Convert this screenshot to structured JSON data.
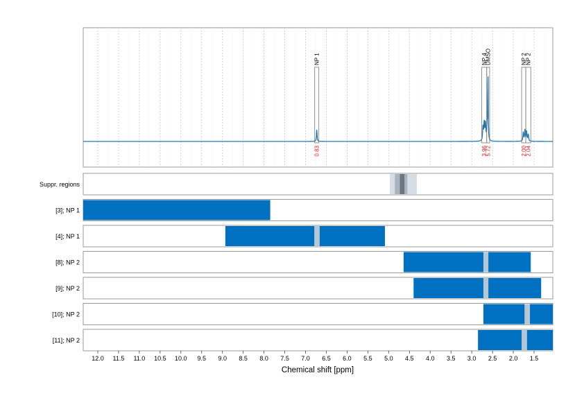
{
  "chart_data": {
    "type": "nmr-spectrum-with-region-tracks",
    "xlabel": "Chemical shift [ppm]",
    "x_reversed": true,
    "xlim": [
      12.35,
      1.05
    ],
    "x_ticks": [
      12.0,
      11.5,
      11.0,
      10.5,
      10.0,
      9.5,
      9.0,
      8.5,
      8.0,
      7.5,
      7.0,
      6.5,
      6.0,
      5.5,
      5.0,
      4.5,
      4.0,
      3.5,
      3.0,
      2.5,
      2.0,
      1.5
    ],
    "x_tick_labels": [
      "12.0",
      "11.5",
      "11.0",
      "10.5",
      "10.0",
      "9.5",
      "9.0",
      "8.5",
      "8.0",
      "7.5",
      "7.0",
      "6.5",
      "6.0",
      "5.5",
      "5.0",
      "4.5",
      "4.0",
      "3.5",
      "3.0",
      "2.5",
      "2.0",
      "1.5"
    ],
    "spectrum": {
      "color": "#1f77b4",
      "baseline_y": 0,
      "peaks": [
        {
          "x": 6.73,
          "height": 0.18,
          "width": 0.008
        },
        {
          "x": 2.73,
          "height": 0.2,
          "width": 0.01
        },
        {
          "x": 2.7,
          "height": 0.28,
          "width": 0.01
        },
        {
          "x": 2.67,
          "height": 0.25,
          "width": 0.01
        },
        {
          "x": 2.63,
          "height": 0.22,
          "width": 0.01
        },
        {
          "x": 2.61,
          "height": 1.0,
          "width": 0.006
        },
        {
          "x": 1.76,
          "height": 0.13,
          "width": 0.01
        },
        {
          "x": 1.72,
          "height": 0.16,
          "width": 0.01
        },
        {
          "x": 1.68,
          "height": 0.14,
          "width": 0.01
        },
        {
          "x": 1.64,
          "height": 0.1,
          "width": 0.01
        }
      ]
    },
    "annotations": [
      {
        "label": "NP 1",
        "x_left": 6.78,
        "x_right": 6.68,
        "integral": "0.83"
      },
      {
        "label": "NP 4",
        "x_left": 2.76,
        "x_right": 2.64,
        "integral": "3.96"
      },
      {
        "label": "DMSO",
        "x_left": 2.64,
        "x_right": 2.57,
        "integral": "5.72"
      },
      {
        "label": "NP 2",
        "x_left": 1.8,
        "x_right": 1.7,
        "integral": "2.00"
      },
      {
        "label": "NP 2",
        "x_left": 1.7,
        "x_right": 1.58,
        "integral": "2.04"
      }
    ],
    "integral_color": "#e41a1c",
    "tracks": [
      {
        "label": "Suppr. regions",
        "bars": [
          {
            "from": 4.97,
            "to": 4.32,
            "color": "#d6dde5"
          },
          {
            "from": 4.85,
            "to": 4.55,
            "color": "#a9b4bf"
          },
          {
            "from": 4.73,
            "to": 4.62,
            "color": "#6b7680"
          }
        ]
      },
      {
        "label": "[3]; NP 1",
        "bars": [
          {
            "from": 12.35,
            "to": 7.85,
            "color": "#0070c0"
          }
        ]
      },
      {
        "label": "[4]; NP 1",
        "bars": [
          {
            "from": 8.93,
            "to": 5.09,
            "color": "#0070c0"
          },
          {
            "from": 6.79,
            "to": 6.66,
            "color": "#b5c7d6"
          }
        ]
      },
      {
        "label": "[8]; NP 2",
        "bars": [
          {
            "from": 4.64,
            "to": 1.58,
            "color": "#0070c0"
          },
          {
            "from": 2.72,
            "to": 2.6,
            "color": "#b5c7d6"
          }
        ]
      },
      {
        "label": "[9]; NP 2",
        "bars": [
          {
            "from": 4.4,
            "to": 1.33,
            "color": "#0070c0"
          },
          {
            "from": 2.72,
            "to": 2.6,
            "color": "#b5c7d6"
          }
        ]
      },
      {
        "label": "[10]; NP 2",
        "bars": [
          {
            "from": 2.72,
            "to": 1.05,
            "color": "#0070c0"
          },
          {
            "from": 1.73,
            "to": 1.6,
            "color": "#b5c7d6"
          }
        ]
      },
      {
        "label": "[11]; NP 2",
        "bars": [
          {
            "from": 2.85,
            "to": 1.05,
            "color": "#0070c0"
          },
          {
            "from": 1.8,
            "to": 1.67,
            "color": "#b5c7d6"
          }
        ]
      }
    ]
  }
}
